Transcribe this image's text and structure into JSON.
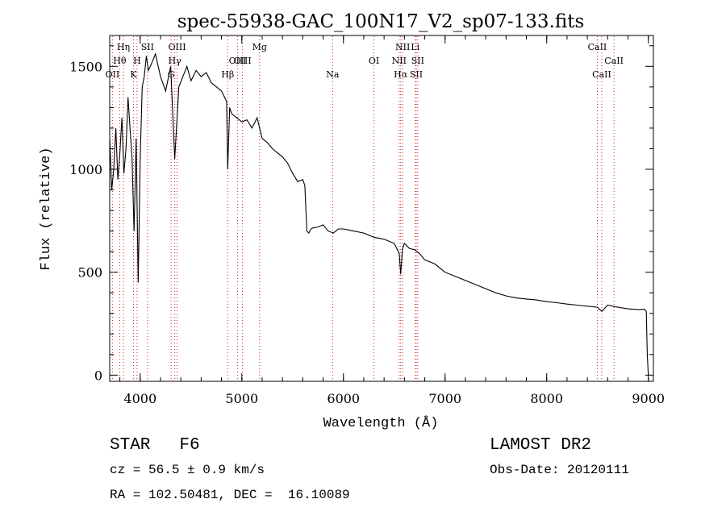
{
  "chart_data": {
    "type": "line",
    "title": "spec-55938-GAC_100N17_V2_sp07-133.fits",
    "xlabel": "Wavelength (Å)",
    "ylabel": "Flux (relative)",
    "xlim": [
      3700,
      9050
    ],
    "ylim": [
      -30,
      1650
    ],
    "x_ticks": [
      4000,
      5000,
      6000,
      7000,
      8000,
      9000
    ],
    "x_tick_labels": [
      "4000",
      "5000",
      "6000",
      "7000",
      "8000",
      "9000"
    ],
    "y_ticks": [
      0,
      500,
      1000,
      1500
    ],
    "y_tick_labels": [
      "0",
      "500",
      "1000",
      "1500"
    ],
    "grid": false,
    "line_markers": [
      {
        "name": "OII",
        "wavelength": 3727,
        "row": 3
      },
      {
        "name": "Hη",
        "wavelength": 3835,
        "row": 1
      },
      {
        "name": "Hθ",
        "wavelength": 3798,
        "row": 2
      },
      {
        "name": "K",
        "wavelength": 3934,
        "row": 3
      },
      {
        "name": "H",
        "wavelength": 3969,
        "row": 2
      },
      {
        "name": "SII",
        "wavelength": 4072,
        "row": 1
      },
      {
        "name": "G",
        "wavelength": 4304,
        "row": 3
      },
      {
        "name": "Hγ",
        "wavelength": 4340,
        "row": 2
      },
      {
        "name": "OIII",
        "wavelength": 4363,
        "row": 1
      },
      {
        "name": "Hβ",
        "wavelength": 4861,
        "row": 3
      },
      {
        "name": "OIII",
        "wavelength": 4959,
        "row": 2
      },
      {
        "name": "OIII",
        "wavelength": 5007,
        "row": 2
      },
      {
        "name": "Mg",
        "wavelength": 5175,
        "row": 1
      },
      {
        "name": "Na",
        "wavelength": 5894,
        "row": 3
      },
      {
        "name": "OI",
        "wavelength": 6300,
        "row": 2
      },
      {
        "name": "NII",
        "wavelength": 6548,
        "row": 2
      },
      {
        "name": "Hα",
        "wavelength": 6563,
        "row": 3
      },
      {
        "name": "NII",
        "wavelength": 6583,
        "row": 1
      },
      {
        "name": "Li",
        "wavelength": 6707,
        "row": 1
      },
      {
        "name": "SII",
        "wavelength": 6716,
        "row": 3
      },
      {
        "name": "SII",
        "wavelength": 6731,
        "row": 2
      },
      {
        "name": "CaII",
        "wavelength": 8498,
        "row": 1
      },
      {
        "name": "CaII",
        "wavelength": 8542,
        "row": 3
      },
      {
        "name": "CaII",
        "wavelength": 8662,
        "row": 2
      }
    ],
    "series": [
      {
        "x": [
          3700,
          3720,
          3740,
          3760,
          3780,
          3800,
          3820,
          3840,
          3860,
          3880,
          3900,
          3920,
          3940,
          3960,
          3980,
          4000,
          4020,
          4040,
          4060,
          4080,
          4100,
          4150,
          4200,
          4250,
          4300,
          4340,
          4380,
          4420,
          4460,
          4500,
          4550,
          4600,
          4650,
          4700,
          4750,
          4800,
          4850,
          4861,
          4880,
          4900,
          4950,
          5000,
          5050,
          5100,
          5150,
          5200,
          5250,
          5300,
          5350,
          5400,
          5450,
          5500,
          5550,
          5600,
          5620,
          5640,
          5660,
          5680,
          5700,
          5750,
          5800,
          5850,
          5900,
          5950,
          6000,
          6100,
          6200,
          6300,
          6400,
          6500,
          6550,
          6563,
          6580,
          6600,
          6650,
          6700,
          6750,
          6800,
          6900,
          7000,
          7100,
          7200,
          7300,
          7400,
          7500,
          7600,
          7700,
          7800,
          7900,
          8000,
          8100,
          8200,
          8300,
          8400,
          8500,
          8542,
          8600,
          8700,
          8800,
          8900,
          8960,
          8980,
          8990,
          9000
        ],
        "y": [
          1150,
          900,
          1000,
          1200,
          950,
          1080,
          1250,
          980,
          1100,
          1350,
          1200,
          1050,
          700,
          1150,
          450,
          1050,
          1400,
          1450,
          1550,
          1480,
          1500,
          1560,
          1450,
          1380,
          1500,
          1050,
          1400,
          1450,
          1500,
          1430,
          1480,
          1450,
          1470,
          1420,
          1400,
          1380,
          1330,
          1000,
          1300,
          1270,
          1250,
          1230,
          1240,
          1200,
          1250,
          1150,
          1130,
          1100,
          1080,
          1060,
          1030,
          980,
          940,
          950,
          920,
          700,
          690,
          710,
          715,
          720,
          730,
          700,
          690,
          710,
          710,
          700,
          690,
          670,
          660,
          640,
          590,
          490,
          610,
          640,
          615,
          610,
          590,
          560,
          540,
          500,
          480,
          460,
          440,
          420,
          400,
          385,
          375,
          370,
          365,
          357,
          352,
          345,
          340,
          335,
          330,
          310,
          340,
          330,
          322,
          318,
          320,
          310,
          100,
          0
        ]
      }
    ],
    "annotations": {
      "object": "STAR",
      "subclass": "F6",
      "survey": "LAMOST DR2",
      "cz": "cz = 56.5 ± 0.9 km/s",
      "obs_date": "Obs-Date: 20120111",
      "coords": "RA = 102.50481, DEC =  16.10089"
    }
  }
}
